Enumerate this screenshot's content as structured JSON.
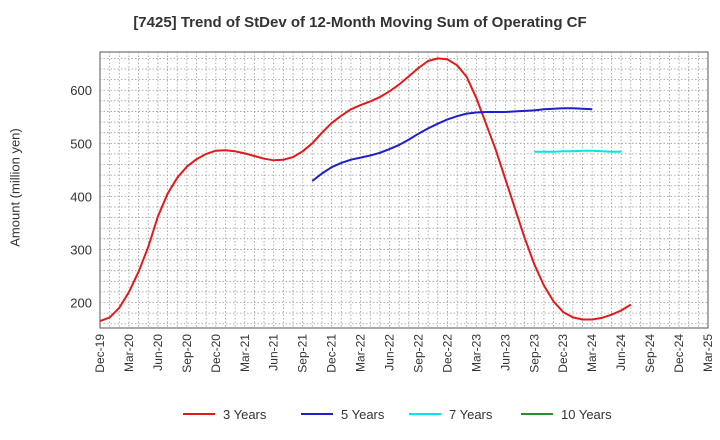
{
  "chart_data": {
    "type": "line",
    "title": "[7425]  Trend of StDev of 12-Month Moving Sum of Operating CF",
    "ylabel": "Amount (million yen)",
    "xlabel": "",
    "ylim": [
      152,
      672
    ],
    "yticks": [
      200,
      300,
      400,
      500,
      600
    ],
    "x_tick_labels": [
      "Dec-19",
      "Mar-20",
      "Jun-20",
      "Sep-20",
      "Dec-20",
      "Mar-21",
      "Jun-21",
      "Sep-21",
      "Dec-21",
      "Mar-22",
      "Jun-22",
      "Sep-22",
      "Dec-22",
      "Mar-23",
      "Jun-23",
      "Sep-23",
      "Dec-23",
      "Mar-24",
      "Jun-24",
      "Sep-24",
      "Dec-24",
      "Mar-25"
    ],
    "grid": true,
    "legend_position": "bottom",
    "series": [
      {
        "name": "3 Years",
        "color": "#e31a1c",
        "values": [
          165,
          172,
          190,
          220,
          258,
          305,
          362,
          405,
          435,
          456,
          470,
          480,
          486,
          487,
          485,
          481,
          476,
          471,
          468,
          469,
          474,
          485,
          500,
          520,
          538,
          552,
          564,
          572,
          579,
          587,
          598,
          611,
          626,
          642,
          655,
          660,
          658,
          647,
          625,
          585,
          537,
          488,
          433,
          377,
          322,
          272,
          232,
          202,
          182,
          172,
          168,
          168,
          171,
          177,
          185,
          196
        ]
      },
      {
        "name": "5 Years",
        "color": "#1f1fcc",
        "values": [
          null,
          null,
          null,
          null,
          null,
          null,
          null,
          null,
          null,
          null,
          null,
          null,
          null,
          null,
          null,
          null,
          null,
          null,
          null,
          null,
          null,
          null,
          429,
          443,
          455,
          463,
          469,
          473,
          477,
          482,
          489,
          497,
          507,
          518,
          528,
          537,
          545,
          551,
          556,
          558,
          559,
          559,
          559,
          560,
          561,
          562,
          564,
          565,
          566,
          566,
          565,
          564
        ]
      },
      {
        "name": "7 Years",
        "color": "#00e5e5",
        "values": [
          null,
          null,
          null,
          null,
          null,
          null,
          null,
          null,
          null,
          null,
          null,
          null,
          null,
          null,
          null,
          null,
          null,
          null,
          null,
          null,
          null,
          null,
          null,
          null,
          null,
          null,
          null,
          null,
          null,
          null,
          null,
          null,
          null,
          null,
          null,
          null,
          null,
          null,
          null,
          null,
          null,
          null,
          null,
          null,
          null,
          484,
          484,
          484,
          485,
          485,
          486,
          486,
          485,
          484,
          484
        ]
      },
      {
        "name": "10 Years",
        "color": "#2e8b2e",
        "values": []
      }
    ]
  }
}
